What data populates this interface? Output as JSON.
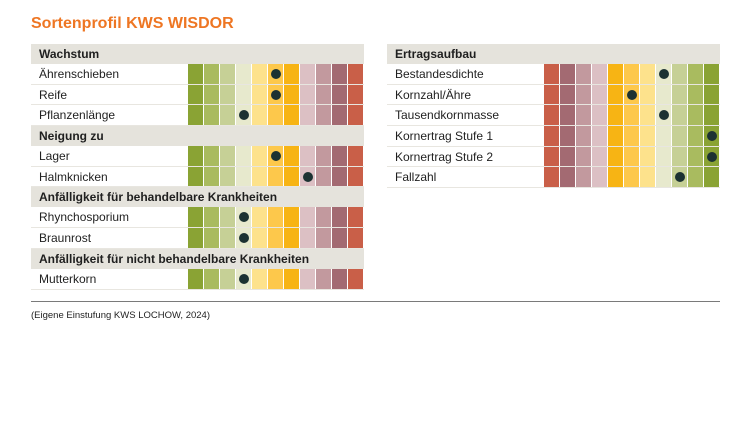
{
  "title": "Sortenprofil KWS WISDOR",
  "footnote": "(Eigene Einstufung KWS LOCHOW, 2024)",
  "colors": {
    "title": "#ee7623",
    "dot": "#1c3232",
    "scale_good_to_bad": [
      "#8aa334",
      "#a9bb5f",
      "#c6d096",
      "#e7e9cd",
      "#fde28c",
      "#fdc84b",
      "#f7b414",
      "#dcc0c4",
      "#c2999e",
      "#a36a72",
      "#c95f48"
    ],
    "scale_bad_to_good": [
      "#c95f48",
      "#a36a72",
      "#c2999e",
      "#dcc0c4",
      "#f7b414",
      "#fdc84b",
      "#fde28c",
      "#e7e9cd",
      "#c6d096",
      "#a9bb5f",
      "#8aa334"
    ]
  },
  "chart_data": {
    "type": "table",
    "scale_levels": 11,
    "panels": [
      {
        "colorway": "good_to_bad",
        "sections": [
          {
            "header": "Wachstum",
            "rows": [
              {
                "label": "Ährenschieben",
                "value": 6
              },
              {
                "label": "Reife",
                "value": 6
              },
              {
                "label": "Pflanzenlänge",
                "value": 4
              }
            ]
          },
          {
            "header": "Neigung zu",
            "rows": [
              {
                "label": "Lager",
                "value": 6
              },
              {
                "label": "Halmknicken",
                "value": 8
              }
            ]
          },
          {
            "header": "Anfälligkeit für behandelbare Krankheiten",
            "rows": [
              {
                "label": "Rhynchosporium",
                "value": 4
              },
              {
                "label": "Braunrost",
                "value": 4
              }
            ]
          },
          {
            "header": "Anfälligkeit für nicht behandelbare Krankheiten",
            "rows": [
              {
                "label": "Mutterkorn",
                "value": 4
              }
            ]
          }
        ]
      },
      {
        "colorway": "bad_to_good",
        "sections": [
          {
            "header": "Ertragsaufbau",
            "rows": [
              {
                "label": "Bestandesdichte",
                "value": 8
              },
              {
                "label": "Kornzahl/Ähre",
                "value": 6
              },
              {
                "label": "Tausendkornmasse",
                "value": 8
              },
              {
                "label": "Kornertrag Stufe 1",
                "value": 11
              },
              {
                "label": "Kornertrag Stufe 2",
                "value": 11
              },
              {
                "label": "Fallzahl",
                "value": 9
              }
            ]
          }
        ]
      }
    ]
  }
}
